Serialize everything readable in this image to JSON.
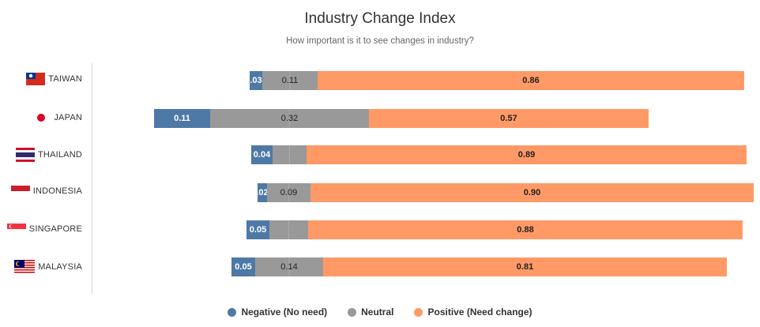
{
  "chart_data": {
    "type": "bar",
    "orientation": "horizontal",
    "stacking": "normal",
    "title": "Industry Change Index",
    "subtitle": "How important is it to see changes in industry?",
    "categories": [
      "TAIWAN",
      "JAPAN",
      "THAILAND",
      "INDONESIA",
      "SINGAPORE",
      "MALAYSIA"
    ],
    "series": [
      {
        "name": "Negative (No need)",
        "color": "#4e79a7",
        "values": [
          0.03,
          0.11,
          0.04,
          0.02,
          0.05,
          0.05
        ],
        "labels": [
          ".03",
          "0.11",
          "0.04",
          ".02",
          "0.05",
          "0.05"
        ]
      },
      {
        "name": "Neutral",
        "color": "#999999",
        "values": [
          0.11,
          0.32,
          0.07,
          0.09,
          0.08,
          0.14
        ],
        "labels": [
          "0.11",
          "0.32",
          "",
          "0.09",
          "",
          "0.14"
        ]
      },
      {
        "name": "Positive (Need change)",
        "color": "#ff9966",
        "values": [
          0.86,
          0.57,
          0.89,
          0.9,
          0.88,
          0.81
        ],
        "labels": [
          "0.86",
          "0.57",
          "0.89",
          "0.90",
          "0.88",
          "0.81"
        ]
      }
    ],
    "legend_position": "bottom-center",
    "grid": false
  },
  "flags": [
    "flag-taiwan-icon",
    "flag-japan-icon",
    "flag-thailand-icon",
    "flag-indonesia-icon",
    "flag-singapore-icon",
    "flag-malaysia-icon"
  ]
}
